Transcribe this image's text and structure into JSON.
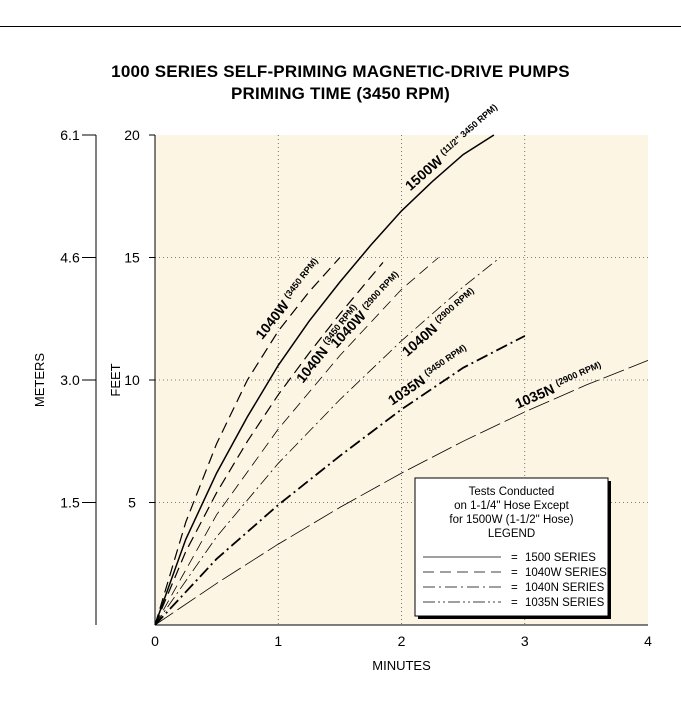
{
  "chart_data": {
    "type": "line",
    "title": "1000 SERIES SELF-PRIMING MAGNETIC-DRIVE PUMPS",
    "subtitle": "PRIMING TIME (3450 RPM)",
    "xlabel": "MINUTES",
    "ylabel": "FEET",
    "y2label": "METERS",
    "xlim": [
      0,
      4
    ],
    "ylim": [
      0,
      20
    ],
    "x_ticks": [
      "0",
      "1",
      "2",
      "3",
      "4"
    ],
    "y_ticks": [
      {
        "value": 5,
        "label": "5"
      },
      {
        "value": 10,
        "label": "10"
      },
      {
        "value": 15,
        "label": "15"
      },
      {
        "value": 20,
        "label": "20"
      }
    ],
    "y2_ticks": [
      {
        "value": 5,
        "label": "1.5"
      },
      {
        "value": 10,
        "label": "3.0"
      },
      {
        "value": 15,
        "label": "4.6"
      },
      {
        "value": 20,
        "label": "6.1"
      }
    ],
    "grid": true,
    "background": "#fdf5e4",
    "series": [
      {
        "name": "1500W",
        "note": "(11/2\" 3450 RPM)",
        "style": "solid",
        "stroke_width": 1.5,
        "x": [
          0,
          0.25,
          0.5,
          0.75,
          1.0,
          1.25,
          1.5,
          1.75,
          2.0,
          2.25,
          2.5,
          2.75
        ],
        "y": [
          0,
          3.5,
          6.2,
          8.5,
          10.6,
          12.4,
          14.0,
          15.5,
          16.9,
          18.1,
          19.2,
          20.0
        ]
      },
      {
        "name": "1040W",
        "note": "(3450 RPM)",
        "style": "dash",
        "stroke_width": 1.2,
        "x": [
          0,
          0.25,
          0.5,
          0.75,
          1.0,
          1.25,
          1.5
        ],
        "y": [
          0,
          4.2,
          7.4,
          10.0,
          12.0,
          13.6,
          15.0
        ]
      },
      {
        "name": "1040N",
        "note": "(3450 RPM)",
        "style": "dash",
        "stroke_width": 1.2,
        "x": [
          0,
          0.25,
          0.5,
          0.75,
          1.0,
          1.25,
          1.5,
          1.75,
          1.85
        ],
        "y": [
          0,
          3.0,
          5.4,
          7.5,
          9.4,
          11.1,
          12.7,
          14.2,
          14.8
        ]
      },
      {
        "name": "1040W",
        "note": "(2900 RPM)",
        "style": "dash",
        "stroke_width": 0.8,
        "x": [
          0,
          0.5,
          1.0,
          1.5,
          2.0,
          2.3
        ],
        "y": [
          0,
          4.5,
          8.0,
          11.0,
          13.7,
          15.0
        ]
      },
      {
        "name": "1040N",
        "note": "(2900 RPM)",
        "style": "dashdot",
        "stroke_width": 0.8,
        "x": [
          0,
          0.5,
          1.0,
          1.5,
          2.0,
          2.5,
          2.8
        ],
        "y": [
          0,
          3.6,
          6.6,
          9.2,
          11.6,
          13.8,
          15.0
        ]
      },
      {
        "name": "1035N",
        "note": "(3450 RPM)",
        "style": "dashdot",
        "stroke_width": 1.8,
        "x": [
          0,
          0.5,
          1.0,
          1.5,
          2.0,
          2.5,
          3.0
        ],
        "y": [
          0,
          2.7,
          4.9,
          6.9,
          8.8,
          10.5,
          11.8
        ]
      },
      {
        "name": "1035N",
        "note": "(2900 RPM)",
        "style": "longdash",
        "stroke_width": 0.8,
        "x": [
          0,
          0.5,
          1.0,
          1.5,
          2.0,
          2.5,
          3.0,
          3.5,
          4.0
        ],
        "y": [
          0,
          1.7,
          3.3,
          4.8,
          6.2,
          7.5,
          8.7,
          9.8,
          10.8
        ]
      }
    ],
    "legend": {
      "header": [
        "Tests Conducted",
        "on 1-1/4\" Hose Except",
        "for 1500W (1-1/2\" Hose)",
        "LEGEND"
      ],
      "items": [
        {
          "label": "1500  SERIES",
          "style": "solid"
        },
        {
          "label": "1040W  SERIES",
          "style": "dash"
        },
        {
          "label": "1040N  SERIES",
          "style": "dashdot"
        },
        {
          "label": "1035N  SERIES",
          "style": "dashdotdot"
        }
      ],
      "placement": "bottom-right"
    }
  }
}
